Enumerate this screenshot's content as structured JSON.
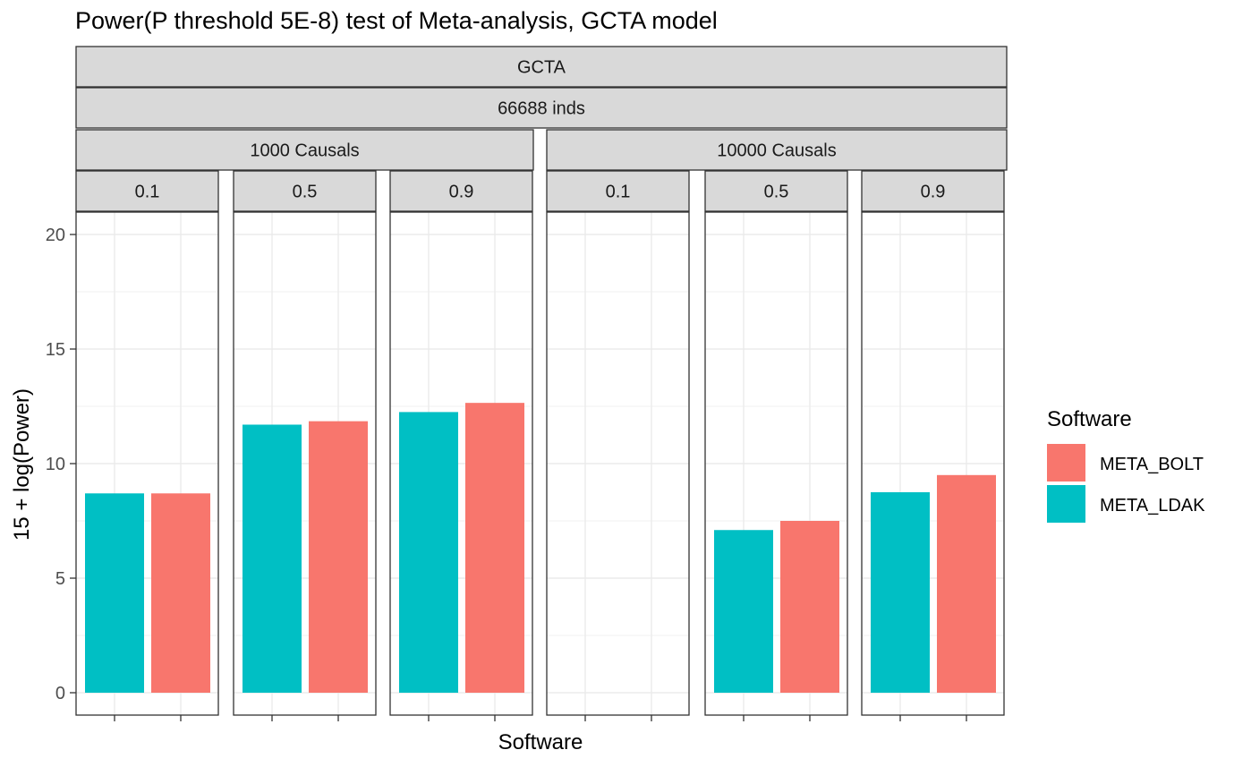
{
  "chart_data": {
    "type": "bar",
    "title": "Power(P threshold 5E-8) test of Meta-analysis, GCTA model",
    "xlabel": "Software",
    "ylabel": "15 + log(Power)",
    "ylim": [
      -0.9,
      20.9
    ],
    "yticks": [
      0,
      5,
      10,
      15,
      20
    ],
    "grid": true,
    "legend": {
      "title": "Software",
      "position": "right",
      "entries": [
        {
          "name": "META_BOLT",
          "color": "#F8766D"
        },
        {
          "name": "META_LDAK",
          "color": "#00BFC4"
        }
      ]
    },
    "strips": {
      "level1": "GCTA",
      "level2": "66688 inds",
      "level3": [
        "1000 Causals",
        "10000 Causals"
      ],
      "level4": [
        "0.1",
        "0.5",
        "0.9",
        "0.1",
        "0.5",
        "0.9"
      ]
    },
    "categories": [
      "META_LDAK",
      "META_BOLT"
    ],
    "panels": [
      {
        "causals": "1000 Causals",
        "h2": "0.1",
        "values": {
          "META_LDAK": 8.7,
          "META_BOLT": 8.7
        }
      },
      {
        "causals": "1000 Causals",
        "h2": "0.5",
        "values": {
          "META_LDAK": 11.7,
          "META_BOLT": 11.85
        }
      },
      {
        "causals": "1000 Causals",
        "h2": "0.9",
        "values": {
          "META_LDAK": 12.25,
          "META_BOLT": 12.65
        }
      },
      {
        "causals": "10000 Causals",
        "h2": "0.1",
        "values": {}
      },
      {
        "causals": "10000 Causals",
        "h2": "0.5",
        "values": {
          "META_LDAK": 7.1,
          "META_BOLT": 7.5
        }
      },
      {
        "causals": "10000 Causals",
        "h2": "0.9",
        "values": {
          "META_LDAK": 8.75,
          "META_BOLT": 9.5
        }
      }
    ]
  }
}
